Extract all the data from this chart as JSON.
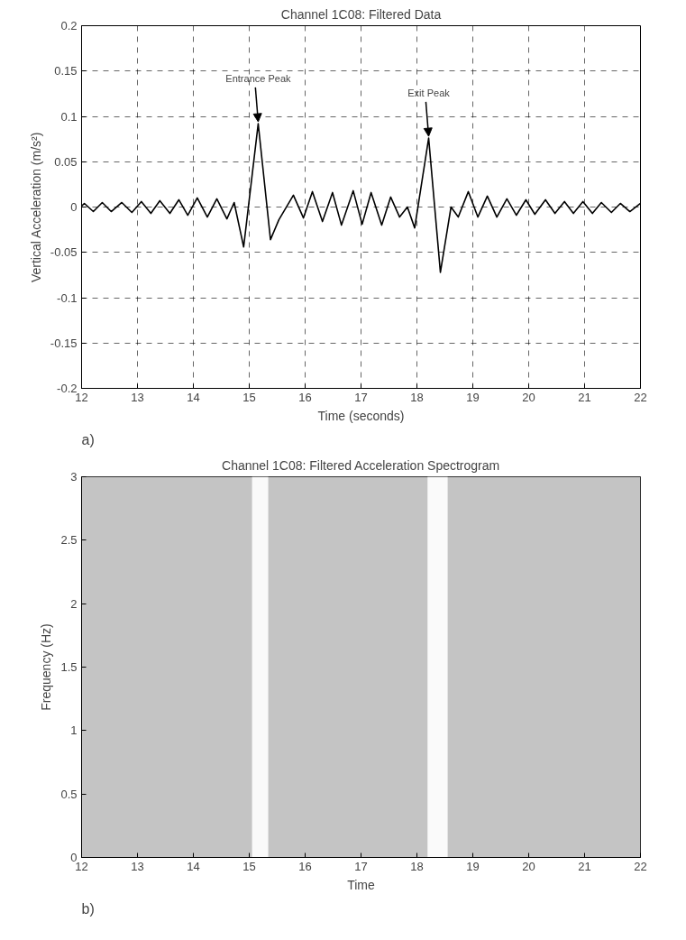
{
  "chart_data": [
    {
      "type": "line",
      "title": "Channel 1C08: Filtered Data",
      "xlabel": "Time (seconds)",
      "ylabel": "Vertical Acceleration (m/s²)",
      "xlim": [
        12,
        22
      ],
      "xticks": [
        12,
        13,
        14,
        15,
        16,
        17,
        18,
        19,
        20,
        21,
        22
      ],
      "ylim": [
        -0.2,
        0.2
      ],
      "yticks": [
        -0.2,
        -0.15,
        -0.1,
        -0.05,
        0,
        0.05,
        0.1,
        0.15,
        0.2
      ],
      "grid": true,
      "line_style": "solid",
      "series": [
        {
          "color": "#000000",
          "x": [
            12.0,
            12.05,
            12.21,
            12.37,
            12.53,
            12.72,
            12.9,
            13.07,
            13.24,
            13.4,
            13.58,
            13.74,
            13.9,
            14.07,
            14.25,
            14.42,
            14.6,
            14.73,
            14.9,
            15.16,
            15.38,
            15.53,
            15.79,
            15.97,
            16.13,
            16.31,
            16.49,
            16.65,
            16.86,
            17.02,
            17.18,
            17.37,
            17.53,
            17.69,
            17.83,
            17.96,
            18.21,
            18.42,
            18.61,
            18.74,
            18.92,
            19.09,
            19.26,
            19.43,
            19.61,
            19.78,
            19.95,
            20.11,
            20.3,
            20.47,
            20.64,
            20.8,
            20.97,
            21.14,
            21.3,
            21.48,
            21.64,
            21.81,
            22.0
          ],
          "values": [
            0.001,
            0.004,
            -0.005,
            0.005,
            -0.005,
            0.005,
            -0.006,
            0.006,
            -0.007,
            0.007,
            -0.007,
            0.008,
            -0.009,
            0.01,
            -0.011,
            0.009,
            -0.013,
            0.005,
            -0.044,
            0.092,
            -0.036,
            -0.014,
            0.013,
            -0.012,
            0.017,
            -0.016,
            0.016,
            -0.02,
            0.018,
            -0.019,
            0.016,
            -0.02,
            0.011,
            -0.011,
            0.0,
            -0.023,
            0.076,
            -0.072,
            0.0,
            -0.011,
            0.017,
            -0.011,
            0.012,
            -0.011,
            0.009,
            -0.009,
            0.008,
            -0.008,
            0.008,
            -0.007,
            0.006,
            -0.007,
            0.006,
            -0.007,
            0.005,
            -0.006,
            0.004,
            -0.005,
            0.004
          ]
        }
      ],
      "annotations": [
        {
          "text": "Entrance Peak",
          "x": 15.16,
          "y": 0.092
        },
        {
          "text": "Exit Peak",
          "x": 18.21,
          "y": 0.076
        },
        "a)"
      ]
    },
    {
      "type": "line",
      "title": "Channel 1C08: Filtered Acceleration Spectrogram",
      "xlabel": "Time",
      "ylabel": "Frequency (Hz)",
      "xlim": [
        12,
        22
      ],
      "xticks": [
        12,
        13,
        14,
        15,
        16,
        17,
        18,
        19,
        20,
        21,
        22
      ],
      "ylim": [
        0,
        3
      ],
      "yticks": [
        0,
        0.5,
        1,
        1.5,
        2,
        2.5,
        3
      ],
      "grid": true,
      "bands": [
        {
          "axis": "x",
          "from": 12,
          "to": 22,
          "color": "#c4c4c4"
        },
        {
          "axis": "x",
          "from": 15.05,
          "to": 15.34,
          "color": "#fafafa"
        },
        {
          "axis": "x",
          "from": 18.19,
          "to": 18.55,
          "color": "#fafafa"
        }
      ],
      "annotations": [
        "b)"
      ]
    }
  ]
}
